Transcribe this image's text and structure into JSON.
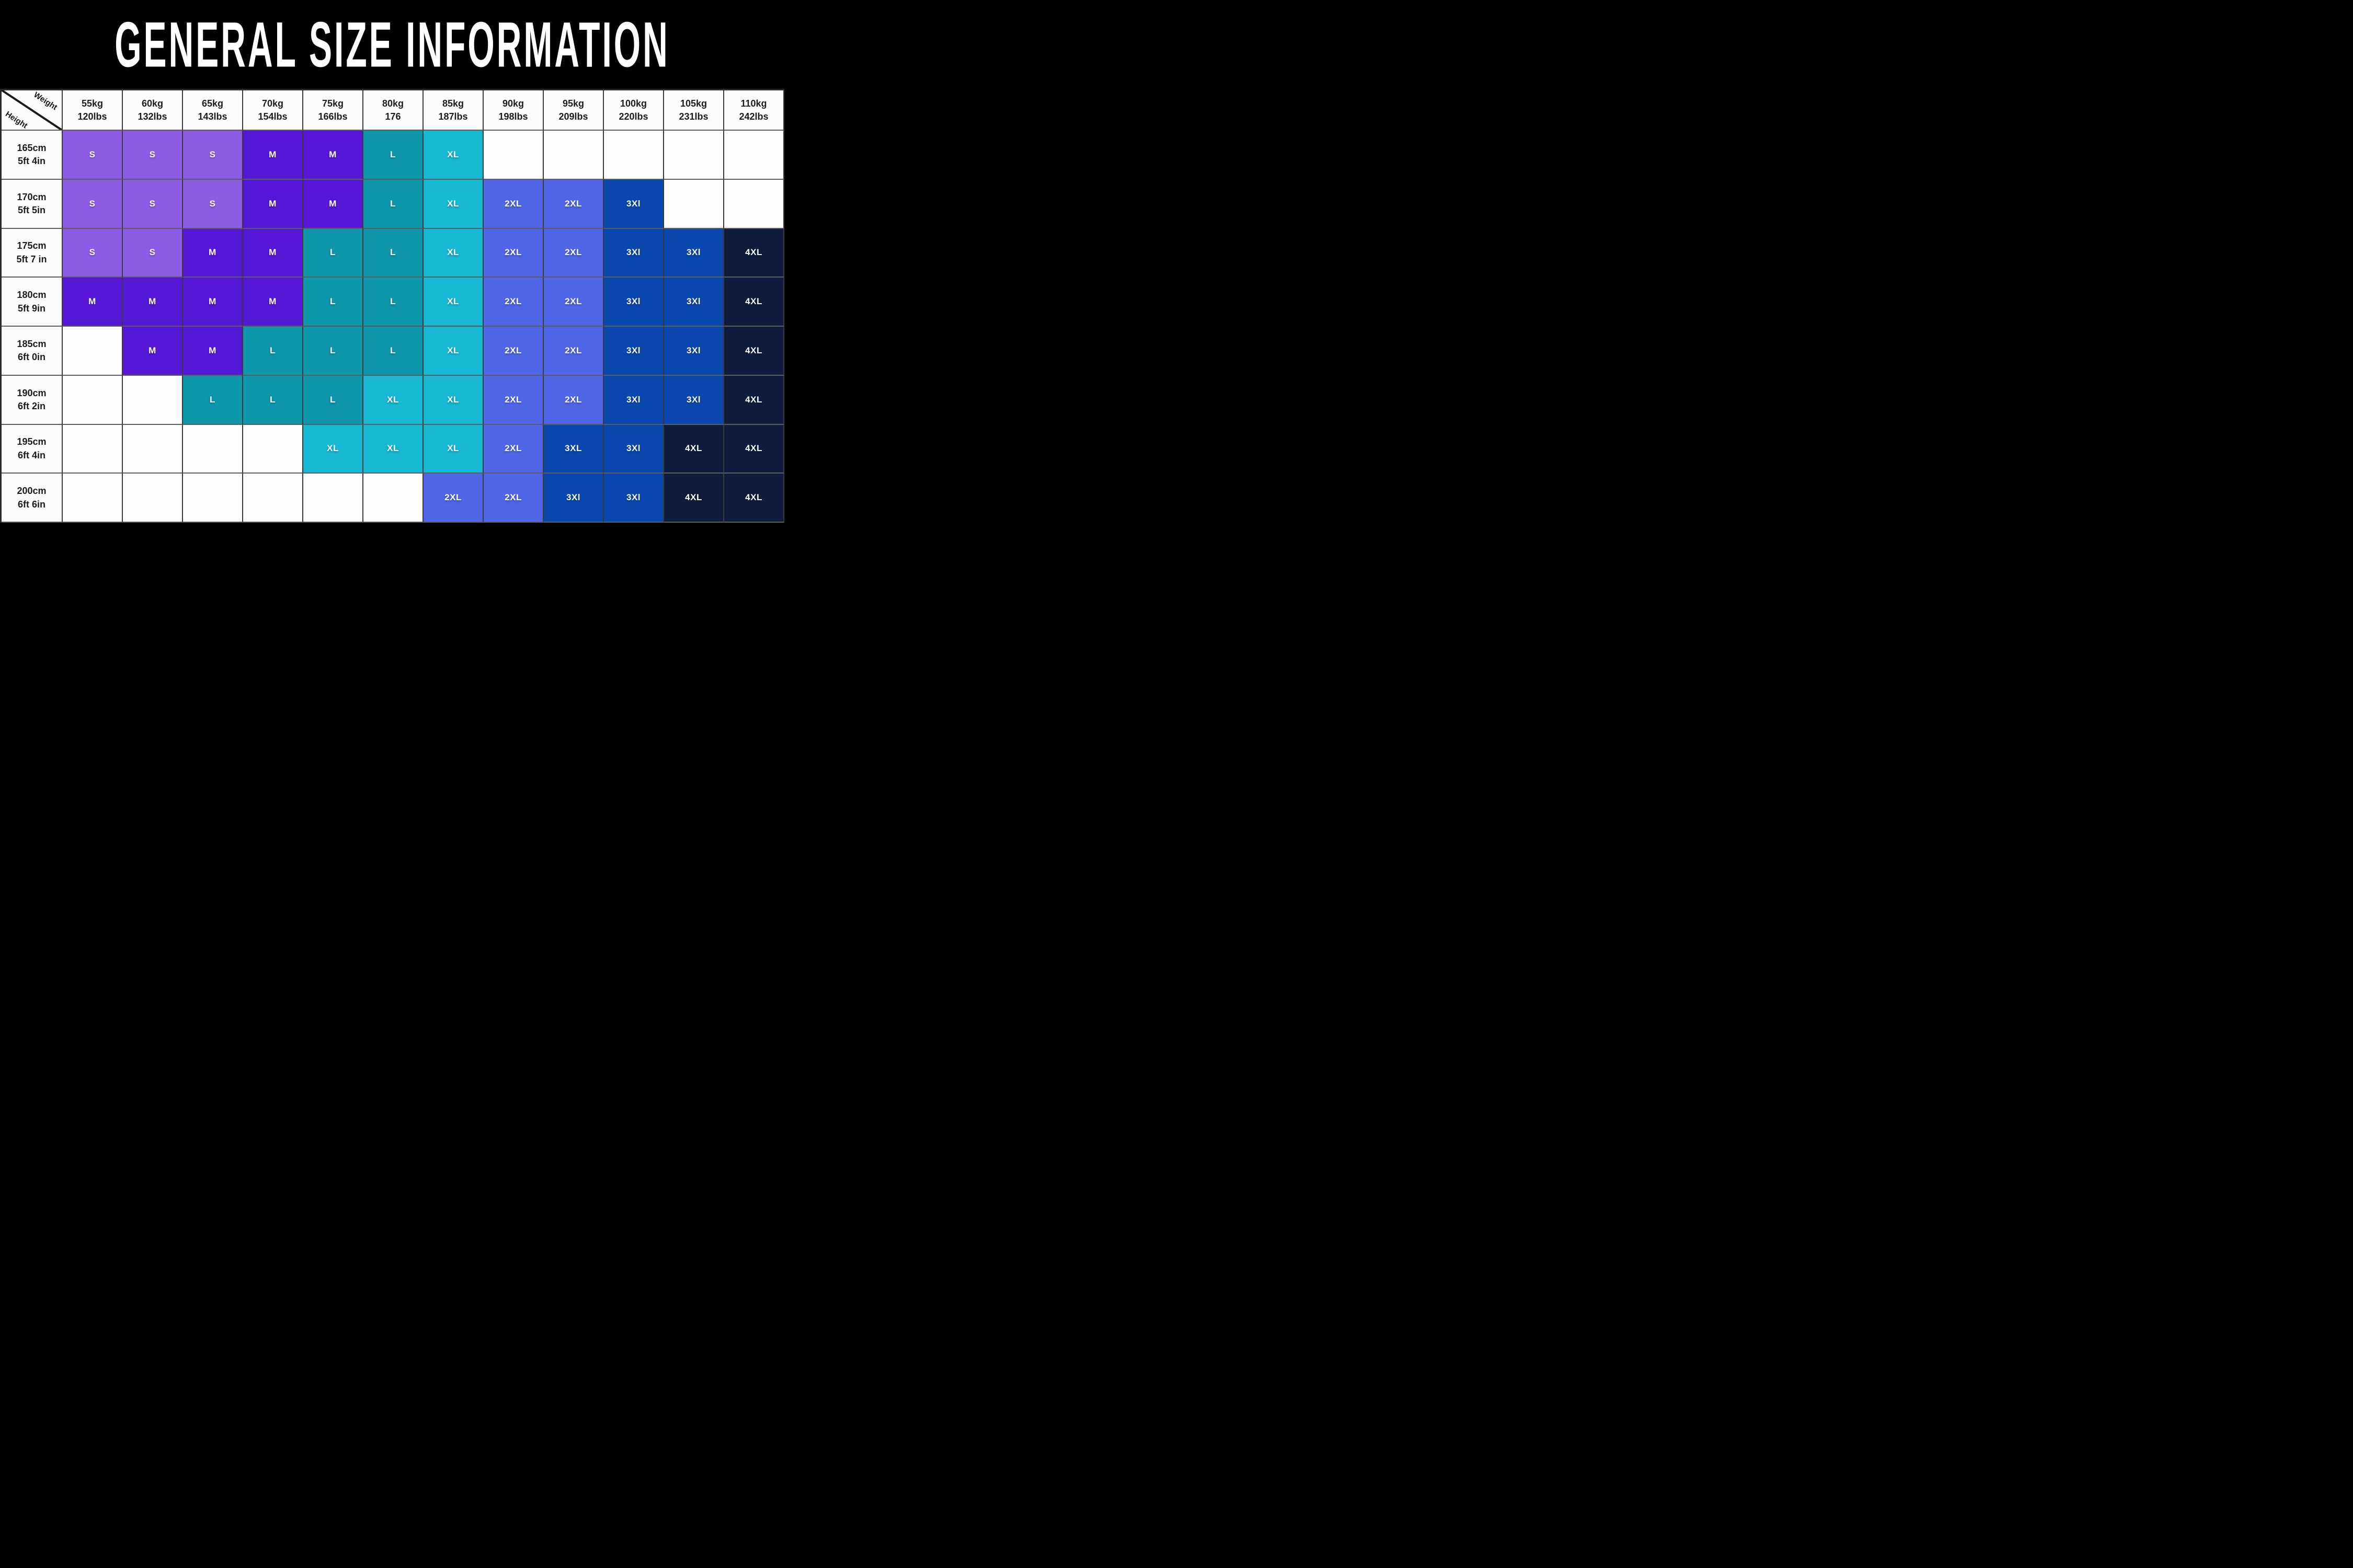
{
  "title": "GENERAL SIZE INFORMATION",
  "chart_data": {
    "type": "table",
    "title": "GENERAL SIZE INFORMATION",
    "x_label": "Weight",
    "y_label": "Height",
    "columns": [
      {
        "kg": "55kg",
        "lbs": "120lbs"
      },
      {
        "kg": "60kg",
        "lbs": "132lbs"
      },
      {
        "kg": "65kg",
        "lbs": "143lbs"
      },
      {
        "kg": "70kg",
        "lbs": "154lbs"
      },
      {
        "kg": "75kg",
        "lbs": "166lbs"
      },
      {
        "kg": "80kg",
        "lbs": "176"
      },
      {
        "kg": "85kg",
        "lbs": "187lbs"
      },
      {
        "kg": "90kg",
        "lbs": "198lbs"
      },
      {
        "kg": "95kg",
        "lbs": "209lbs"
      },
      {
        "kg": "100kg",
        "lbs": "220lbs"
      },
      {
        "kg": "105kg",
        "lbs": "231lbs"
      },
      {
        "kg": "110kg",
        "lbs": "242lbs"
      }
    ],
    "rows": [
      {
        "cm": "165cm",
        "ftin": "5ft 4in",
        "cells": [
          "S",
          "S",
          "S",
          "M",
          "M",
          "L",
          "XL",
          "",
          "",
          "",
          "",
          ""
        ]
      },
      {
        "cm": "170cm",
        "ftin": "5ft 5in",
        "cells": [
          "S",
          "S",
          "S",
          "M",
          "M",
          "L",
          "XL",
          "2XL",
          "2XL",
          "3Xl",
          "",
          ""
        ]
      },
      {
        "cm": "175cm",
        "ftin": "5ft 7 in",
        "cells": [
          "S",
          "S",
          "M",
          "M",
          "L",
          "L",
          "XL",
          "2XL",
          "2XL",
          "3Xl",
          "3Xl",
          "4XL"
        ]
      },
      {
        "cm": "180cm",
        "ftin": "5ft 9in",
        "cells": [
          "M",
          "M",
          "M",
          "M",
          "L",
          "L",
          "XL",
          "2XL",
          "2XL",
          "3Xl",
          "3Xl",
          "4XL"
        ]
      },
      {
        "cm": "185cm",
        "ftin": "6ft 0in",
        "cells": [
          "",
          "M",
          "M",
          "L",
          "L",
          "L",
          "XL",
          "2XL",
          "2XL",
          "3Xl",
          "3Xl",
          "4XL"
        ]
      },
      {
        "cm": "190cm",
        "ftin": "6ft 2in",
        "cells": [
          "",
          "",
          "L",
          "L",
          "L",
          "XL",
          "XL",
          "2XL",
          "2XL",
          "3Xl",
          "3Xl",
          "4XL"
        ]
      },
      {
        "cm": "195cm",
        "ftin": "6ft 4in",
        "cells": [
          "",
          "",
          "",
          "",
          "XL",
          "XL",
          "XL",
          "2XL",
          "3XL",
          "3Xl",
          "4XL",
          "4XL"
        ]
      },
      {
        "cm": "200cm",
        "ftin": "6ft 6in",
        "cells": [
          "",
          "",
          "",
          "",
          "",
          "",
          "2XL",
          "2XL",
          "3Xl",
          "3Xl",
          "4XL",
          "4XL"
        ]
      }
    ],
    "palette": {
      "S": "#8a5de4",
      "M": "#5618d6",
      "L": "#0e96aa",
      "XL": "#16b8d3",
      "2XL": "#4f66e6",
      "3XL": "#0a48b0",
      "3Xl": "#0a48b0",
      "4XL": "#101c3e"
    },
    "colors": {
      "band_background": "#000000",
      "title_text": "#ffffff",
      "table_background": "#fdfdfd",
      "header_text": "#1b1b1b",
      "cell_text": "#ffffff",
      "grid_line": "#3a3a3a"
    }
  }
}
